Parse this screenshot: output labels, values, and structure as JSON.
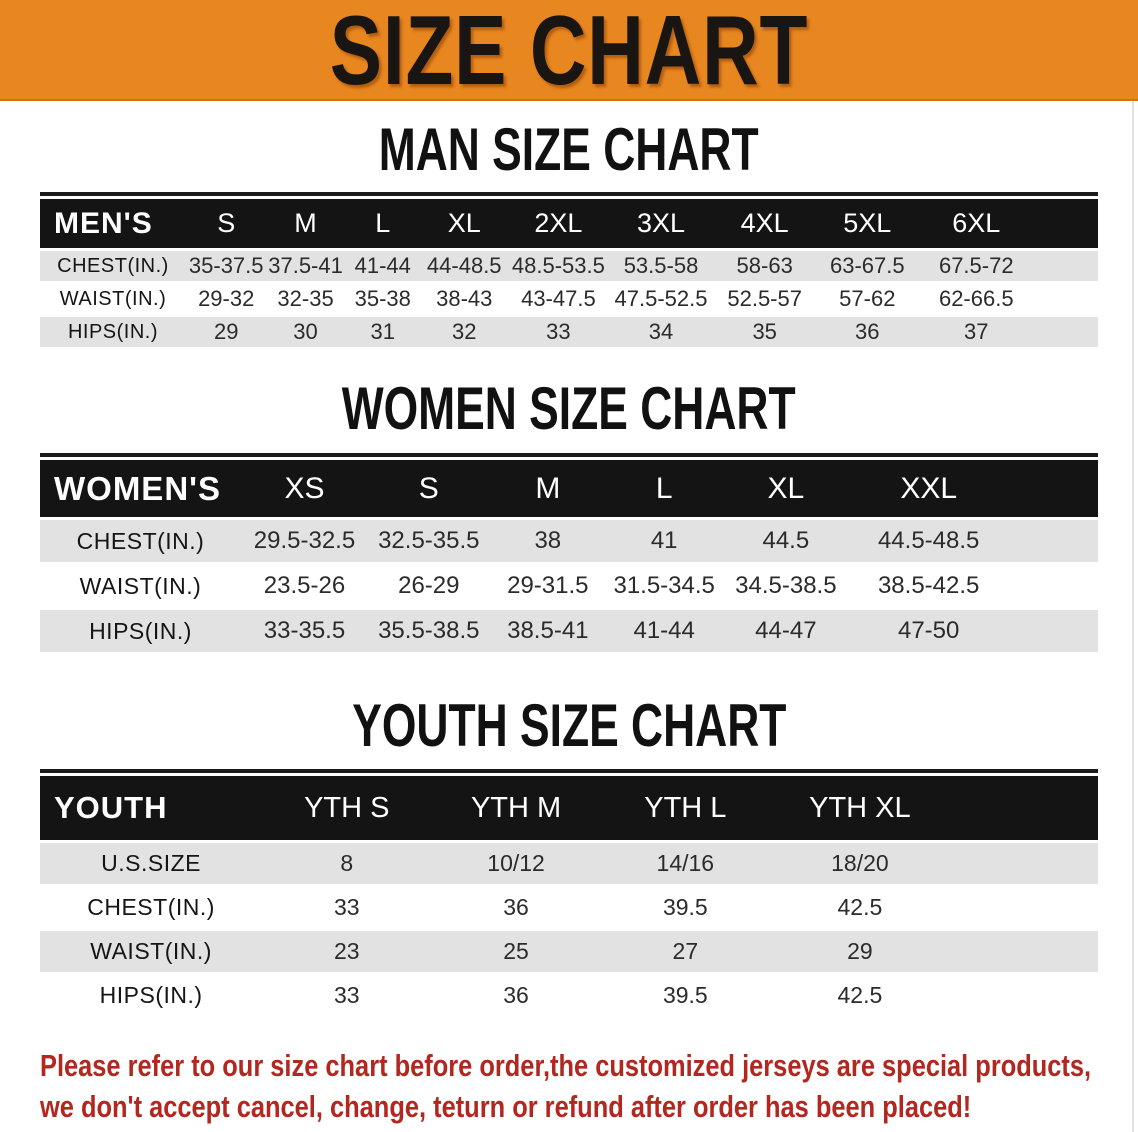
{
  "banner": {
    "title": "SIZE CHART"
  },
  "sections": [
    {
      "heading": "MAN SIZE CHART",
      "table": {
        "header_label": "MEN'S",
        "columns": [
          "S",
          "M",
          "L",
          "XL",
          "2XL",
          "3XL",
          "4XL",
          "5XL",
          "6XL"
        ],
        "rows": [
          {
            "label": "CHEST(IN.)",
            "values": [
              "35-37.5",
              "37.5-41",
              "41-44",
              "44-48.5",
              "48.5-53.5",
              "53.5-58",
              "58-63",
              "63-67.5",
              "67.5-72"
            ]
          },
          {
            "label": "WAIST(IN.)",
            "values": [
              "29-32",
              "32-35",
              "35-38",
              "38-43",
              "43-47.5",
              "47.5-52.5",
              "52.5-57",
              "57-62",
              "62-66.5"
            ]
          },
          {
            "label": "HIPS(IN.)",
            "values": [
              "29",
              "30",
              "31",
              "32",
              "33",
              "34",
              "35",
              "36",
              "37"
            ]
          }
        ]
      }
    },
    {
      "heading": "WOMEN SIZE CHART",
      "table": {
        "header_label": "WOMEN'S",
        "columns": [
          "XS",
          "S",
          "M",
          "L",
          "XL",
          "XXL"
        ],
        "rows": [
          {
            "label": "CHEST(IN.)",
            "values": [
              "29.5-32.5",
              "32.5-35.5",
              "38",
              "41",
              "44.5",
              "44.5-48.5"
            ]
          },
          {
            "label": "WAIST(IN.)",
            "values": [
              "23.5-26",
              "26-29",
              "29-31.5",
              "31.5-34.5",
              "34.5-38.5",
              "38.5-42.5"
            ]
          },
          {
            "label": "HIPS(IN.)",
            "values": [
              "33-35.5",
              "35.5-38.5",
              "38.5-41",
              "41-44",
              "44-47",
              "47-50"
            ]
          }
        ]
      }
    },
    {
      "heading": "YOUTH SIZE CHART",
      "table": {
        "header_label": "YOUTH",
        "columns": [
          "YTH S",
          "YTH M",
          "YTH L",
          "YTH XL"
        ],
        "rows": [
          {
            "label": "U.S.SIZE",
            "values": [
              "8",
              "10/12",
              "14/16",
              "18/20"
            ]
          },
          {
            "label": "CHEST(IN.)",
            "values": [
              "33",
              "36",
              "39.5",
              "42.5"
            ]
          },
          {
            "label": "WAIST(IN.)",
            "values": [
              "23",
              "25",
              "27",
              "29"
            ]
          },
          {
            "label": "HIPS(IN.)",
            "values": [
              "33",
              "36",
              "39.5",
              "42.5"
            ]
          }
        ]
      }
    }
  ],
  "disclaimer": {
    "lines": [
      "Please refer to our size chart before order,the customized jerseys are special products,",
      "we don't accept cancel, change, teturn or refund after order has been placed!"
    ]
  },
  "colors": {
    "banner_bg": "#E8861F",
    "table_header_bg": "#141414",
    "row_alt_bg": "#E2E2E2",
    "disclaimer_red": "#B2271F",
    "heading_text": "#111111"
  }
}
